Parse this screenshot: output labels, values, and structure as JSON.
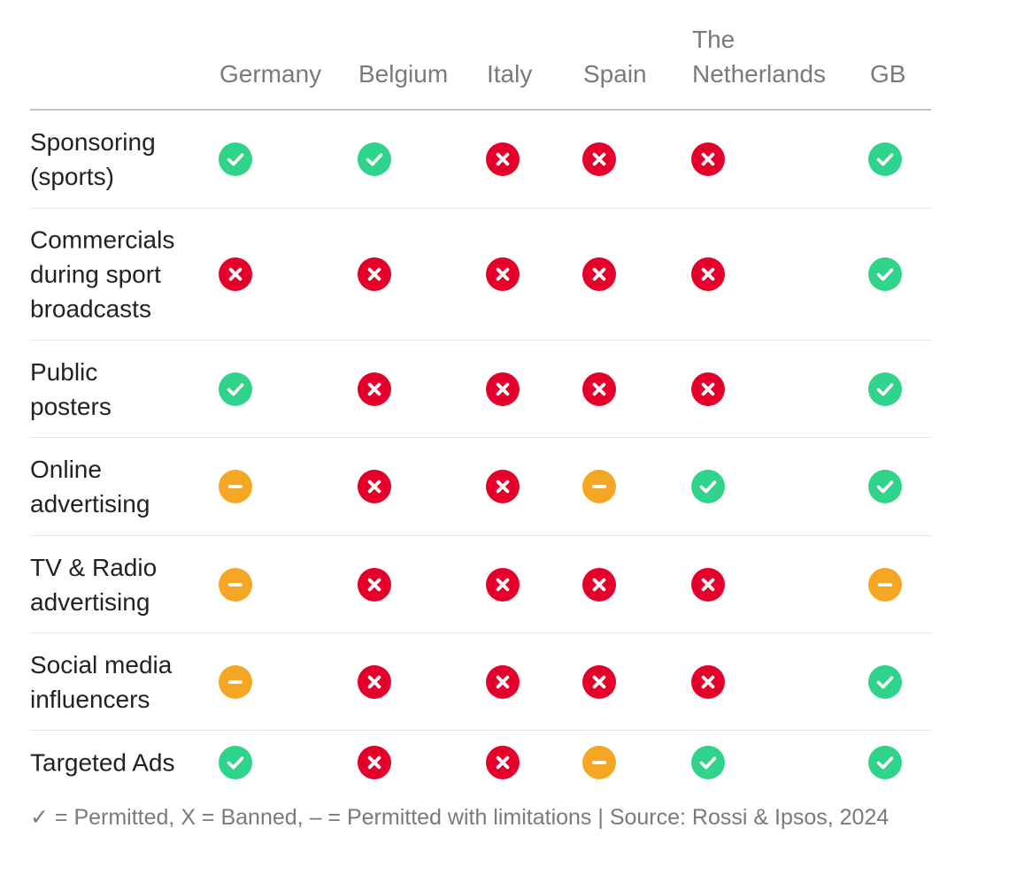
{
  "colors": {
    "permitted": "#2fd38a",
    "banned": "#e4002b",
    "limited": "#f5a623"
  },
  "icons": {
    "permitted": "check-circle-icon",
    "banned": "x-circle-icon",
    "limited": "minus-circle-icon"
  },
  "chart_data": {
    "type": "table",
    "columns": [
      "Germany",
      "Belgium",
      "Italy",
      "Spain",
      "The\nNetherlands",
      "GB"
    ],
    "rows": [
      {
        "label": "Sponsoring\n(sports)",
        "values": [
          "permitted",
          "permitted",
          "banned",
          "banned",
          "banned",
          "permitted"
        ]
      },
      {
        "label": "Commercials\nduring sport\nbroadcasts",
        "values": [
          "banned",
          "banned",
          "banned",
          "banned",
          "banned",
          "permitted"
        ]
      },
      {
        "label": "Public\nposters",
        "values": [
          "permitted",
          "banned",
          "banned",
          "banned",
          "banned",
          "permitted"
        ]
      },
      {
        "label": "Online\nadvertising",
        "values": [
          "limited",
          "banned",
          "banned",
          "limited",
          "permitted",
          "permitted"
        ]
      },
      {
        "label": "TV & Radio\nadvertising",
        "values": [
          "limited",
          "banned",
          "banned",
          "banned",
          "banned",
          "limited"
        ]
      },
      {
        "label": "Social media\ninfluencers",
        "values": [
          "limited",
          "banned",
          "banned",
          "banned",
          "banned",
          "permitted"
        ]
      },
      {
        "label": "Targeted Ads",
        "values": [
          "permitted",
          "banned",
          "banned",
          "limited",
          "permitted",
          "permitted"
        ]
      }
    ]
  },
  "footnote": "✓ = Permitted, X = Banned, – = Permitted with limitations  | Source: Rossi & Ipsos, 2024"
}
